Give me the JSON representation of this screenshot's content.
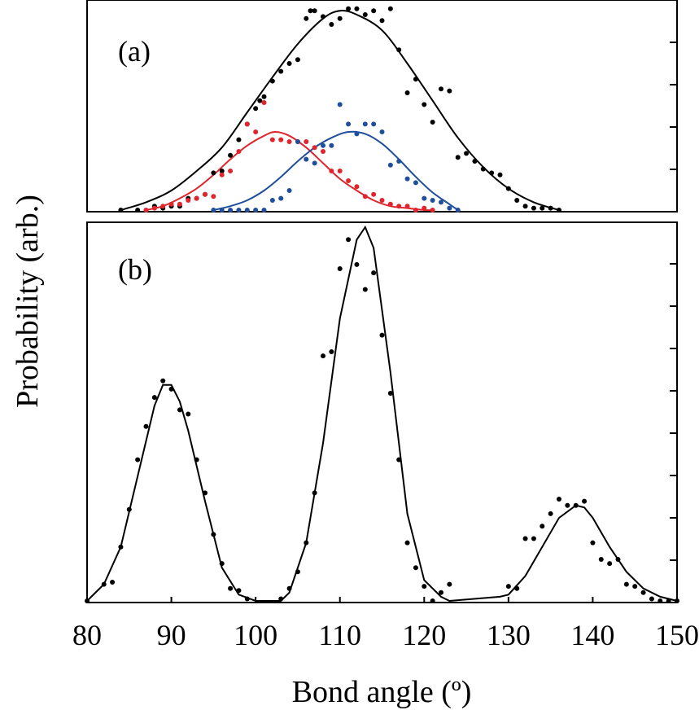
{
  "chart_data": {
    "type": "scatter",
    "ylabel": "Probability (arb.)",
    "xlabel": "Bond angle (º)",
    "x_ticks": [
      "80",
      "90",
      "100",
      "110",
      "120",
      "130",
      "140",
      "150"
    ],
    "xlim": [
      80,
      150
    ],
    "panels": [
      {
        "label": "(a)",
        "ylim": [
          0,
          1.05
        ],
        "series": [
          {
            "name": "total-points",
            "color": "#000000",
            "style": "points",
            "x": [
              84,
              86,
              88,
              89,
              90,
              91,
              92,
              93,
              94,
              95,
              96,
              97,
              98,
              99,
              100,
              100.5,
              101,
              102,
              103,
              104,
              105,
              106,
              106.5,
              107,
              108,
              109,
              110,
              111,
              112,
              113,
              114,
              115,
              116,
              117,
              118,
              119,
              120,
              121,
              122,
              123,
              124,
              125,
              126,
              127,
              128,
              129,
              130,
              131,
              132,
              133,
              134,
              135,
              136
            ],
            "y": [
              0.0,
              0.0,
              0.02,
              0.01,
              0.02,
              0.02,
              0.06,
              0.06,
              0.08,
              0.19,
              0.2,
              0.28,
              0.36,
              0.44,
              0.52,
              0.56,
              0.58,
              0.66,
              0.71,
              0.75,
              0.77,
              0.98,
              1.02,
              1.02,
              0.99,
              0.95,
              0.98,
              1.03,
              1.03,
              1.0,
              1.02,
              0.97,
              1.03,
              0.82,
              0.6,
              0.67,
              0.54,
              0.45,
              0.62,
              0.61,
              0.27,
              0.29,
              0.25,
              0.21,
              0.19,
              0.18,
              0.11,
              0.05,
              0.02,
              0.01,
              0.01,
              0.01,
              0.0
            ],
            "fit_x": [
              84,
              87,
              90,
              93,
              96,
              99,
              102,
              105,
              108,
              110,
              112,
              115,
              118,
              121,
              124,
              127,
              130,
              133,
              136
            ],
            "fit_y": [
              0.0,
              0.04,
              0.1,
              0.2,
              0.32,
              0.5,
              0.68,
              0.85,
              0.98,
              1.02,
              1.0,
              0.92,
              0.75,
              0.56,
              0.37,
              0.22,
              0.11,
              0.04,
              0.0
            ]
          },
          {
            "name": "red-component",
            "color": "#e0252e",
            "style": "points",
            "x": [
              87,
              88,
              89,
              90,
              91,
              92,
              93,
              94,
              95,
              96,
              97,
              98,
              99,
              100,
              101,
              102,
              103,
              104,
              105,
              106,
              107,
              108,
              109,
              110,
              111,
              112,
              113,
              114,
              115,
              116,
              117,
              118,
              119,
              120,
              121
            ],
            "y": [
              0.0,
              0.01,
              0.02,
              0.03,
              0.03,
              0.05,
              0.06,
              0.08,
              0.07,
              0.18,
              0.2,
              0.3,
              0.44,
              0.4,
              0.55,
              0.36,
              0.36,
              0.35,
              0.35,
              0.35,
              0.32,
              0.3,
              0.2,
              0.2,
              0.15,
              0.12,
              0.07,
              0.08,
              0.05,
              0.03,
              0.02,
              0.02,
              0.0,
              0.01,
              0.0
            ],
            "fit_x": [
              87,
              89,
              91,
              93,
              95,
              97,
              99,
              101,
              102.3,
              104,
              106,
              108,
              110,
              112,
              114,
              116,
              118,
              120,
              121
            ],
            "fit_y": [
              0.0,
              0.02,
              0.06,
              0.11,
              0.18,
              0.26,
              0.33,
              0.38,
              0.4,
              0.38,
              0.32,
              0.24,
              0.16,
              0.1,
              0.05,
              0.02,
              0.01,
              0.0,
              0.0
            ]
          },
          {
            "name": "blue-component",
            "color": "#1f4e9c",
            "style": "points",
            "x": [
              95,
              96,
              97,
              98,
              99,
              100,
              101,
              102,
              103,
              104,
              105,
              106,
              107,
              108,
              109,
              110,
              111,
              112,
              113,
              114,
              115,
              116,
              117,
              118,
              119,
              120,
              121,
              122,
              123,
              124
            ],
            "y": [
              0.0,
              0.0,
              0.0,
              0.0,
              0.0,
              0.0,
              0.0,
              0.05,
              0.06,
              0.1,
              0.35,
              0.26,
              0.24,
              0.33,
              0.33,
              0.54,
              0.44,
              0.39,
              0.44,
              0.44,
              0.4,
              0.23,
              0.25,
              0.16,
              0.14,
              0.06,
              0.05,
              0.04,
              0.01,
              0.0
            ],
            "fit_x": [
              95,
              97,
              99,
              101,
              103,
              105,
              107,
              109,
              111,
              113,
              115,
              117,
              119,
              121,
              123,
              124
            ],
            "fit_y": [
              0.0,
              0.02,
              0.05,
              0.1,
              0.17,
              0.25,
              0.32,
              0.37,
              0.4,
              0.39,
              0.34,
              0.26,
              0.17,
              0.09,
              0.03,
              0.0
            ]
          }
        ]
      },
      {
        "label": "(b)",
        "ylim": [
          0,
          9.0
        ],
        "series": [
          {
            "name": "b-points",
            "color": "#000000",
            "style": "points",
            "x": [
              80,
              82,
              83,
              84,
              85,
              86,
              87,
              88,
              89,
              90,
              91,
              92,
              93,
              94,
              95,
              96,
              97,
              98,
              99,
              103,
              104,
              105,
              106,
              107,
              108,
              109,
              110,
              111,
              112,
              113,
              114,
              115,
              116,
              117,
              118,
              119,
              120,
              121,
              122,
              123,
              130,
              131,
              132,
              133,
              134,
              135,
              136,
              137,
              138,
              139,
              140,
              141,
              142,
              143,
              144,
              145,
              146,
              147,
              148,
              149,
              150
            ],
            "y": [
              0.0,
              0.4,
              0.45,
              1.3,
              2.2,
              3.4,
              4.2,
              4.9,
              5.3,
              5.1,
              4.6,
              4.5,
              3.4,
              2.6,
              1.6,
              0.9,
              0.3,
              0.25,
              0.05,
              0.05,
              0.3,
              0.7,
              1.4,
              2.6,
              5.9,
              6.0,
              8.0,
              8.7,
              8.1,
              7.5,
              7.9,
              6.4,
              5.0,
              3.4,
              1.4,
              0.8,
              0.35,
              0.0,
              0.2,
              0.4,
              0.35,
              0.3,
              1.5,
              1.5,
              1.8,
              2.1,
              2.45,
              2.3,
              2.3,
              2.4,
              1.4,
              1.0,
              0.9,
              1.0,
              0.4,
              0.35,
              0.2,
              0.05,
              0.0,
              0.0,
              0.0
            ],
            "fit_x": [
              80,
              82,
              84,
              86,
              88,
              89,
              90,
              91,
              92,
              94,
              96,
              98,
              100,
              103,
              104,
              106,
              108,
              110,
              112,
              113,
              114,
              116,
              118,
              120,
              122,
              123,
              129,
              130,
              132,
              134,
              136,
              138,
              139,
              140,
              142,
              144,
              146,
              148,
              150
            ],
            "fit_y": [
              0.0,
              0.4,
              1.3,
              3.0,
              4.7,
              5.2,
              5.2,
              4.8,
              4.1,
              2.4,
              0.8,
              0.15,
              0.0,
              0.0,
              0.2,
              1.4,
              3.8,
              6.8,
              8.7,
              9.0,
              8.5,
              5.5,
              2.1,
              0.5,
              0.1,
              0.0,
              0.1,
              0.15,
              0.6,
              1.3,
              2.0,
              2.3,
              2.25,
              2.0,
              1.3,
              0.7,
              0.3,
              0.1,
              0.0
            ]
          }
        ]
      }
    ]
  }
}
